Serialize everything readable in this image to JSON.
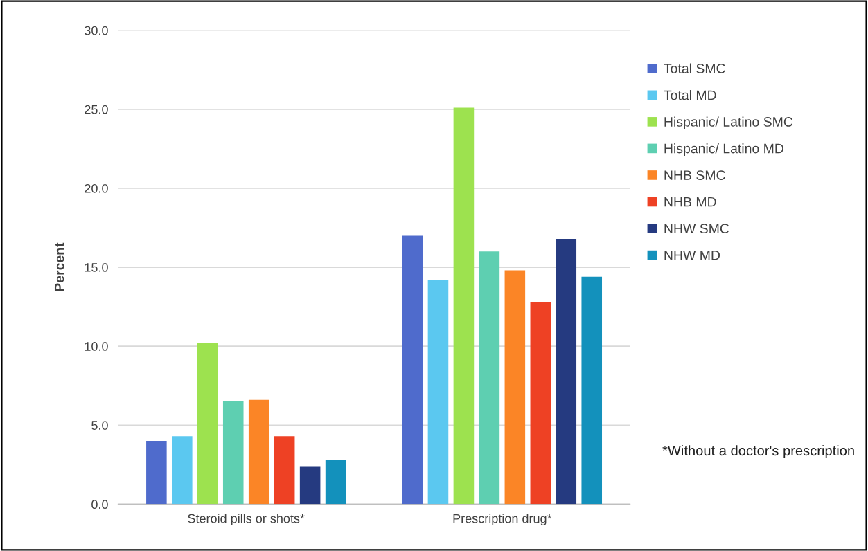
{
  "chart_data": {
    "type": "bar",
    "ylabel": "Percent",
    "categories": [
      "Steroid pills or shots*",
      "Prescription drug*"
    ],
    "series": [
      {
        "name": "Total SMC",
        "color": "#4f6bcc",
        "values": [
          4.0,
          17.0
        ]
      },
      {
        "name": "Total MD",
        "color": "#5bc8f0",
        "values": [
          4.3,
          14.2
        ]
      },
      {
        "name": "Hispanic/ Latino SMC",
        "color": "#9de24f",
        "values": [
          10.2,
          25.1
        ]
      },
      {
        "name": "Hispanic/ Latino MD",
        "color": "#5ecfb1",
        "values": [
          6.5,
          16.0
        ]
      },
      {
        "name": "NHB SMC",
        "color": "#fb8526",
        "values": [
          6.6,
          14.8
        ]
      },
      {
        "name": "NHB MD",
        "color": "#ee4124",
        "values": [
          4.3,
          12.8
        ]
      },
      {
        "name": "NHW SMC",
        "color": "#253a80",
        "values": [
          2.4,
          16.8
        ]
      },
      {
        "name": "NHW MD",
        "color": "#1391bc",
        "values": [
          2.8,
          14.4
        ]
      }
    ],
    "ylim": [
      0,
      30
    ],
    "yticks": [
      {
        "value": 0,
        "label": "0.0"
      },
      {
        "value": 5,
        "label": "5.0"
      },
      {
        "value": 10,
        "label": "10.0"
      },
      {
        "value": 15,
        "label": "15.0"
      },
      {
        "value": 20,
        "label": "20.0"
      },
      {
        "value": 25,
        "label": "25.0"
      },
      {
        "value": 30,
        "label": "30.0"
      }
    ],
    "grid": "y",
    "legend": "right",
    "annotations": [
      "*Without a doctor's prescription"
    ]
  }
}
